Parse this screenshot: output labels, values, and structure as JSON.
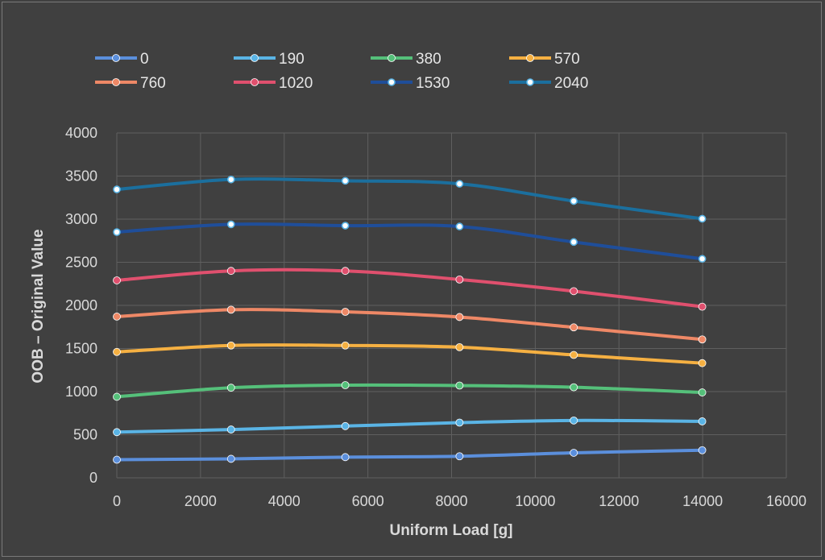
{
  "chart_data": {
    "type": "line",
    "xlabel": "Uniform Load [g]",
    "ylabel": "OOB – Original Value",
    "xlim": [
      0,
      16000
    ],
    "ylim": [
      0,
      4000
    ],
    "x_ticks": [
      0,
      2000,
      4000,
      6000,
      8000,
      10000,
      12000,
      14000,
      16000
    ],
    "y_ticks": [
      0,
      500,
      1000,
      1500,
      2000,
      2500,
      3000,
      3500,
      4000
    ],
    "grid": "both",
    "legend_position": "top",
    "x": [
      0,
      2730,
      5460,
      8190,
      10920,
      13990
    ],
    "series": [
      {
        "name": "0",
        "color": "#5b8fdc",
        "marker": "filled",
        "values": [
          210,
          220,
          240,
          250,
          290,
          320
        ]
      },
      {
        "name": "190",
        "color": "#5ab4e5",
        "marker": "filled",
        "values": [
          530,
          560,
          600,
          640,
          665,
          655
        ]
      },
      {
        "name": "380",
        "color": "#55c07a",
        "marker": "filled",
        "values": [
          940,
          1045,
          1075,
          1070,
          1050,
          990
        ]
      },
      {
        "name": "570",
        "color": "#f5b042",
        "marker": "filled",
        "values": [
          1460,
          1535,
          1535,
          1515,
          1425,
          1330
        ]
      },
      {
        "name": "760",
        "color": "#ee8866",
        "marker": "filled",
        "values": [
          1870,
          1950,
          1925,
          1865,
          1745,
          1605
        ]
      },
      {
        "name": "1020",
        "color": "#e0506e",
        "marker": "filled",
        "values": [
          2290,
          2400,
          2400,
          2300,
          2165,
          1985
        ]
      },
      {
        "name": "1530",
        "color": "#1f4e9a",
        "marker": "hollow",
        "values": [
          2850,
          2940,
          2925,
          2915,
          2735,
          2540
        ]
      },
      {
        "name": "2040",
        "color": "#1b6f9e",
        "marker": "hollow",
        "values": [
          3345,
          3460,
          3445,
          3410,
          3210,
          3005
        ]
      }
    ]
  }
}
